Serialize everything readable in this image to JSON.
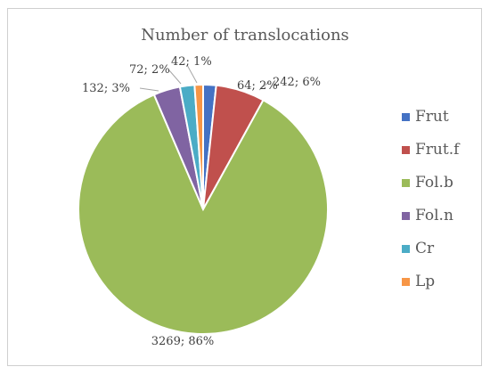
{
  "chart_data": {
    "type": "pie",
    "title": "Number of translocations",
    "slices": [
      {
        "name": "Frut",
        "value": 64,
        "label": "64; 2%",
        "color": "#4472C4"
      },
      {
        "name": "Frut.f",
        "value": 242,
        "label": "242; 6%",
        "color": "#C0504D"
      },
      {
        "name": "Fol.b",
        "value": 3269,
        "label": "3269; 86%",
        "color": "#9BBB59"
      },
      {
        "name": "Fol.n",
        "value": 132,
        "label": "132; 3%",
        "color": "#8064A2"
      },
      {
        "name": "Cr",
        "value": 72,
        "label": "72; 2%",
        "color": "#4BACC6"
      },
      {
        "name": "Lp",
        "value": 42,
        "label": "42; 1%",
        "color": "#F79646"
      }
    ],
    "legend_position": "right"
  }
}
